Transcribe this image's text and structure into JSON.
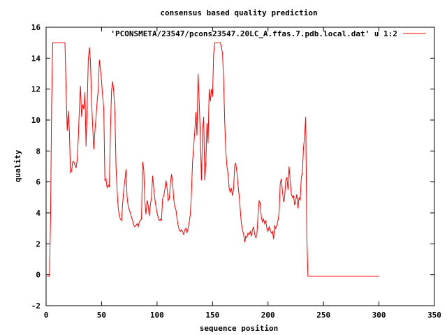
{
  "chart_data": {
    "type": "line",
    "title": "consensus based quality prediction",
    "xlabel": "sequence position",
    "ylabel": "quality",
    "xlim": [
      0,
      350
    ],
    "ylim": [
      -2,
      16
    ],
    "xticks": [
      0,
      50,
      100,
      150,
      200,
      250,
      300,
      350
    ],
    "yticks": [
      -2,
      0,
      2,
      4,
      6,
      8,
      10,
      12,
      14,
      16
    ],
    "legend_position": "top-right",
    "grid": false,
    "series": [
      {
        "name": "'PCONSMETA/23547/pcons23547.20LC_A.ffas.7.pdb.local.dat' u 1:2",
        "color": "#ff0000",
        "points": [
          [
            1,
            -0.1
          ],
          [
            2,
            -0.1
          ],
          [
            3,
            -0.1
          ],
          [
            4,
            3.7
          ],
          [
            5,
            11.0
          ],
          [
            6,
            15.0
          ],
          [
            7,
            15.0
          ],
          [
            8,
            15.0
          ],
          [
            9,
            15.0
          ],
          [
            10,
            15.0
          ],
          [
            11,
            15.0
          ],
          [
            12,
            15.0
          ],
          [
            13,
            15.0
          ],
          [
            14,
            15.0
          ],
          [
            15,
            15.0
          ],
          [
            16,
            15.0
          ],
          [
            17,
            15.0
          ],
          [
            18,
            12.0
          ],
          [
            19,
            9.3
          ],
          [
            20,
            10.6
          ],
          [
            21,
            9.2
          ],
          [
            22,
            6.6
          ],
          [
            23,
            6.7
          ],
          [
            24,
            7.3
          ],
          [
            25,
            7.3
          ],
          [
            26,
            7.1
          ],
          [
            27,
            6.9
          ],
          [
            28,
            7.4
          ],
          [
            29,
            8.8
          ],
          [
            30,
            10.8
          ],
          [
            31,
            12.2
          ],
          [
            32,
            10.2
          ],
          [
            33,
            11.0
          ],
          [
            34,
            10.7
          ],
          [
            35,
            11.8
          ],
          [
            36,
            8.3
          ],
          [
            37,
            10.8
          ],
          [
            38,
            13.9
          ],
          [
            39,
            14.7
          ],
          [
            40,
            13.8
          ],
          [
            41,
            11.2
          ],
          [
            42,
            9.6
          ],
          [
            43,
            8.1
          ],
          [
            44,
            9.3
          ],
          [
            45,
            10.2
          ],
          [
            46,
            11.2
          ],
          [
            47,
            12.0
          ],
          [
            48,
            13.9
          ],
          [
            49,
            13.3
          ],
          [
            50,
            12.5
          ],
          [
            51,
            11.5
          ],
          [
            52,
            10.7
          ],
          [
            53,
            6.1
          ],
          [
            54,
            6.2
          ],
          [
            55,
            5.6
          ],
          [
            56,
            5.8
          ],
          [
            57,
            5.7
          ],
          [
            58,
            9.3
          ],
          [
            59,
            11.9
          ],
          [
            60,
            12.5
          ],
          [
            61,
            11.8
          ],
          [
            62,
            10.5
          ],
          [
            63,
            7.0
          ],
          [
            64,
            5.4
          ],
          [
            65,
            4.3
          ],
          [
            66,
            3.8
          ],
          [
            67,
            3.6
          ],
          [
            68,
            3.5
          ],
          [
            69,
            4.6
          ],
          [
            70,
            5.5
          ],
          [
            71,
            6.1
          ],
          [
            72,
            6.8
          ],
          [
            73,
            5.0
          ],
          [
            74,
            4.4
          ],
          [
            75,
            4.2
          ],
          [
            76,
            4.0
          ],
          [
            77,
            3.7
          ],
          [
            78,
            3.5
          ],
          [
            79,
            3.2
          ],
          [
            80,
            3.1
          ],
          [
            81,
            3.2
          ],
          [
            82,
            3.3
          ],
          [
            83,
            3.1
          ],
          [
            84,
            3.4
          ],
          [
            85,
            3.5
          ],
          [
            86,
            3.6
          ],
          [
            87,
            7.3
          ],
          [
            88,
            6.8
          ],
          [
            89,
            4.8
          ],
          [
            90,
            3.9
          ],
          [
            91,
            4.8
          ],
          [
            92,
            4.5
          ],
          [
            93,
            3.8
          ],
          [
            94,
            4.5
          ],
          [
            95,
            5.0
          ],
          [
            96,
            6.4
          ],
          [
            97,
            5.6
          ],
          [
            98,
            4.9
          ],
          [
            99,
            4.4
          ],
          [
            100,
            4.0
          ],
          [
            101,
            3.7
          ],
          [
            102,
            3.5
          ],
          [
            103,
            3.6
          ],
          [
            104,
            3.5
          ],
          [
            105,
            4.9
          ],
          [
            106,
            5.1
          ],
          [
            107,
            5.5
          ],
          [
            108,
            6.1
          ],
          [
            109,
            5.6
          ],
          [
            110,
            4.8
          ],
          [
            111,
            4.9
          ],
          [
            112,
            5.8
          ],
          [
            113,
            6.5
          ],
          [
            114,
            6.0
          ],
          [
            115,
            4.9
          ],
          [
            116,
            4.4
          ],
          [
            117,
            4.2
          ],
          [
            118,
            3.6
          ],
          [
            119,
            3.2
          ],
          [
            120,
            2.9
          ],
          [
            121,
            2.8
          ],
          [
            122,
            2.9
          ],
          [
            123,
            2.8
          ],
          [
            124,
            2.6
          ],
          [
            125,
            2.9
          ],
          [
            126,
            3.0
          ],
          [
            127,
            2.7
          ],
          [
            128,
            3.0
          ],
          [
            129,
            3.4
          ],
          [
            130,
            3.9
          ],
          [
            131,
            5.3
          ],
          [
            132,
            7.3
          ],
          [
            133,
            8.3
          ],
          [
            134,
            9.3
          ],
          [
            135,
            10.5
          ],
          [
            136,
            9.0
          ],
          [
            137,
            13.0
          ],
          [
            138,
            11.2
          ],
          [
            139,
            9.0
          ],
          [
            140,
            6.1
          ],
          [
            141,
            9.3
          ],
          [
            142,
            10.2
          ],
          [
            143,
            6.1
          ],
          [
            144,
            7.3
          ],
          [
            145,
            9.8
          ],
          [
            146,
            8.5
          ],
          [
            147,
            12.0
          ],
          [
            148,
            11.2
          ],
          [
            149,
            12.0
          ],
          [
            150,
            11.5
          ],
          [
            151,
            14.3
          ],
          [
            152,
            15.0
          ],
          [
            153,
            15.0
          ],
          [
            154,
            15.0
          ],
          [
            155,
            15.0
          ],
          [
            156,
            15.0
          ],
          [
            157,
            15.0
          ],
          [
            158,
            14.7
          ],
          [
            159,
            14.3
          ],
          [
            160,
            12.5
          ],
          [
            161,
            9.8
          ],
          [
            162,
            8.0
          ],
          [
            163,
            7.0
          ],
          [
            164,
            6.5
          ],
          [
            165,
            5.6
          ],
          [
            166,
            5.3
          ],
          [
            167,
            5.6
          ],
          [
            168,
            5.1
          ],
          [
            169,
            5.6
          ],
          [
            170,
            7.1
          ],
          [
            171,
            7.2
          ],
          [
            172,
            6.6
          ],
          [
            173,
            5.8
          ],
          [
            174,
            5.1
          ],
          [
            175,
            4.2
          ],
          [
            176,
            3.3
          ],
          [
            177,
            2.9
          ],
          [
            178,
            2.6
          ],
          [
            179,
            2.1
          ],
          [
            180,
            2.5
          ],
          [
            181,
            2.4
          ],
          [
            182,
            2.7
          ],
          [
            183,
            2.6
          ],
          [
            184,
            2.8
          ],
          [
            185,
            2.5
          ],
          [
            186,
            2.9
          ],
          [
            187,
            3.1
          ],
          [
            188,
            2.6
          ],
          [
            189,
            2.4
          ],
          [
            190,
            2.6
          ],
          [
            191,
            3.8
          ],
          [
            192,
            4.8
          ],
          [
            193,
            4.6
          ],
          [
            194,
            3.7
          ],
          [
            195,
            3.4
          ],
          [
            196,
            3.6
          ],
          [
            197,
            3.3
          ],
          [
            198,
            3.5
          ],
          [
            199,
            3.0
          ],
          [
            200,
            2.8
          ],
          [
            201,
            3.1
          ],
          [
            202,
            2.9
          ],
          [
            203,
            2.7
          ],
          [
            204,
            2.8
          ],
          [
            205,
            2.3
          ],
          [
            206,
            3.2
          ],
          [
            207,
            3.0
          ],
          [
            208,
            3.2
          ],
          [
            209,
            3.5
          ],
          [
            210,
            4.0
          ],
          [
            211,
            5.9
          ],
          [
            212,
            6.2
          ],
          [
            213,
            5.4
          ],
          [
            214,
            4.7
          ],
          [
            215,
            5.0
          ],
          [
            216,
            6.1
          ],
          [
            217,
            6.3
          ],
          [
            218,
            5.5
          ],
          [
            219,
            7.0
          ],
          [
            220,
            6.1
          ],
          [
            221,
            5.2
          ],
          [
            222,
            5.0
          ],
          [
            223,
            5.1
          ],
          [
            224,
            4.5
          ],
          [
            225,
            4.8
          ],
          [
            226,
            5.2
          ],
          [
            227,
            4.3
          ],
          [
            228,
            5.0
          ],
          [
            229,
            4.8
          ],
          [
            230,
            6.3
          ],
          [
            231,
            6.6
          ],
          [
            232,
            8.2
          ],
          [
            233,
            8.9
          ],
          [
            234,
            10.2
          ],
          [
            235,
            2.5
          ],
          [
            236,
            -0.1
          ],
          [
            237,
            -0.1
          ],
          [
            240,
            -0.1
          ],
          [
            250,
            -0.1
          ],
          [
            260,
            -0.1
          ],
          [
            270,
            -0.1
          ],
          [
            280,
            -0.1
          ],
          [
            290,
            -0.1
          ],
          [
            300,
            -0.1
          ]
        ]
      }
    ]
  }
}
